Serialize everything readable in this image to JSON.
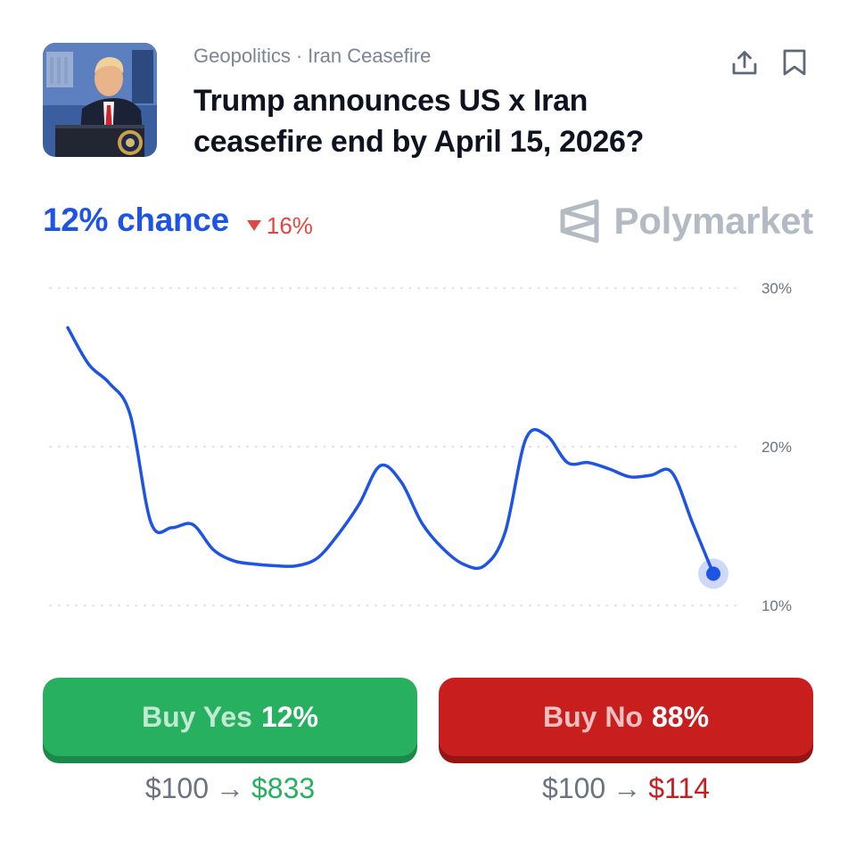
{
  "market": {
    "category": "Geopolitics",
    "subcategory": "Iran Ceasefire",
    "separator": "·",
    "title": "Trump announces US x Iran ceasefire end by April 15, 2026?",
    "image_icon": "press-conference-photo"
  },
  "header_actions": {
    "share_icon": "share-icon",
    "bookmark_icon": "bookmark-icon"
  },
  "probability": {
    "chance_text": "12% chance",
    "change_text": "16%",
    "change_direction": "down"
  },
  "brand": {
    "name": "Polymarket",
    "logo_icon": "polymarket-logo-icon"
  },
  "chart_data": {
    "type": "line",
    "y_tick_labels": [
      "30%",
      "20%",
      "10%"
    ],
    "y_ticks": [
      30,
      20,
      10
    ],
    "ylim": [
      10,
      30
    ],
    "grid": true,
    "series": [
      {
        "values": [
          27.5,
          25.2,
          24.0,
          22.0,
          15.2,
          14.9,
          15.1,
          13.5,
          12.8,
          12.6,
          12.5,
          12.5,
          13.0,
          14.5,
          16.4,
          18.8,
          17.8,
          15.2,
          13.6,
          12.6,
          12.5,
          14.6,
          20.5,
          20.7,
          19.0,
          19.0,
          18.6,
          18.1,
          18.2,
          18.4,
          15.2,
          12.0
        ]
      }
    ],
    "line_color": "#1e54e6",
    "last_value": 12
  },
  "buy_yes": {
    "label": "Buy Yes",
    "percent": "12%",
    "stake": "$100",
    "arrow": "→",
    "return": "$833",
    "color": "#26b05f"
  },
  "buy_no": {
    "label": "Buy No",
    "percent": "88%",
    "stake": "$100",
    "arrow": "→",
    "return": "$114",
    "color": "#c81e1e"
  }
}
